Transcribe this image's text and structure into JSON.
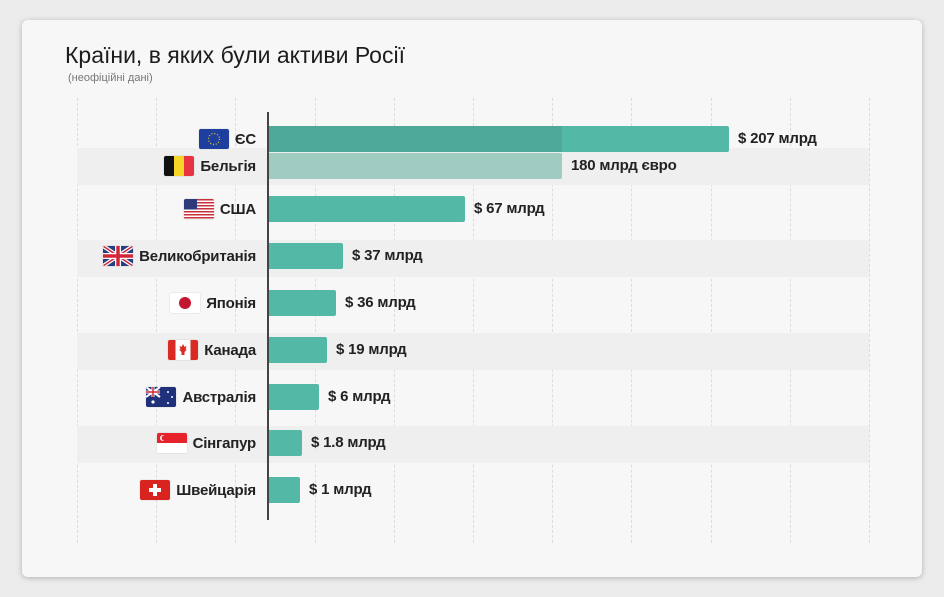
{
  "title": "Країни, в яких були активи Росії",
  "subtitle": "(неофіційні дані)",
  "colors": {
    "bar": "#53b9a6",
    "bar_secondary": "#9fcbc0",
    "bar_overlap": "#4ea999"
  },
  "chart_data": {
    "type": "bar",
    "orientation": "horizontal",
    "title": "Країни, в яких були активи Росії",
    "subtitle": "(неофіційні дані)",
    "grid": true,
    "categories": [
      "ЄС",
      "Бельгія",
      "США",
      "Великобританія",
      "Японія",
      "Канада",
      "Австралія",
      "Сінгапур",
      "Швейцарія"
    ],
    "flags": [
      "eu-flag-icon",
      "belgium-flag-icon",
      "usa-flag-icon",
      "uk-flag-icon",
      "japan-flag-icon",
      "canada-flag-icon",
      "australia-flag-icon",
      "singapore-flag-icon",
      "switzerland-flag-icon"
    ],
    "values": [
      207,
      180,
      67,
      37,
      36,
      19,
      6,
      1.8,
      1
    ],
    "units": [
      "USD",
      "EUR",
      "USD",
      "USD",
      "USD",
      "USD",
      "USD",
      "USD",
      "USD"
    ],
    "labels": [
      "$ 207 млрд",
      "180 млрд євро",
      "$ 67 млрд",
      "$ 37 млрд",
      "$ 36 млрд",
      "$ 19 млрд",
      "$ 6 млрд",
      "$ 1.8 млрд",
      "$ 1 млрд"
    ]
  }
}
